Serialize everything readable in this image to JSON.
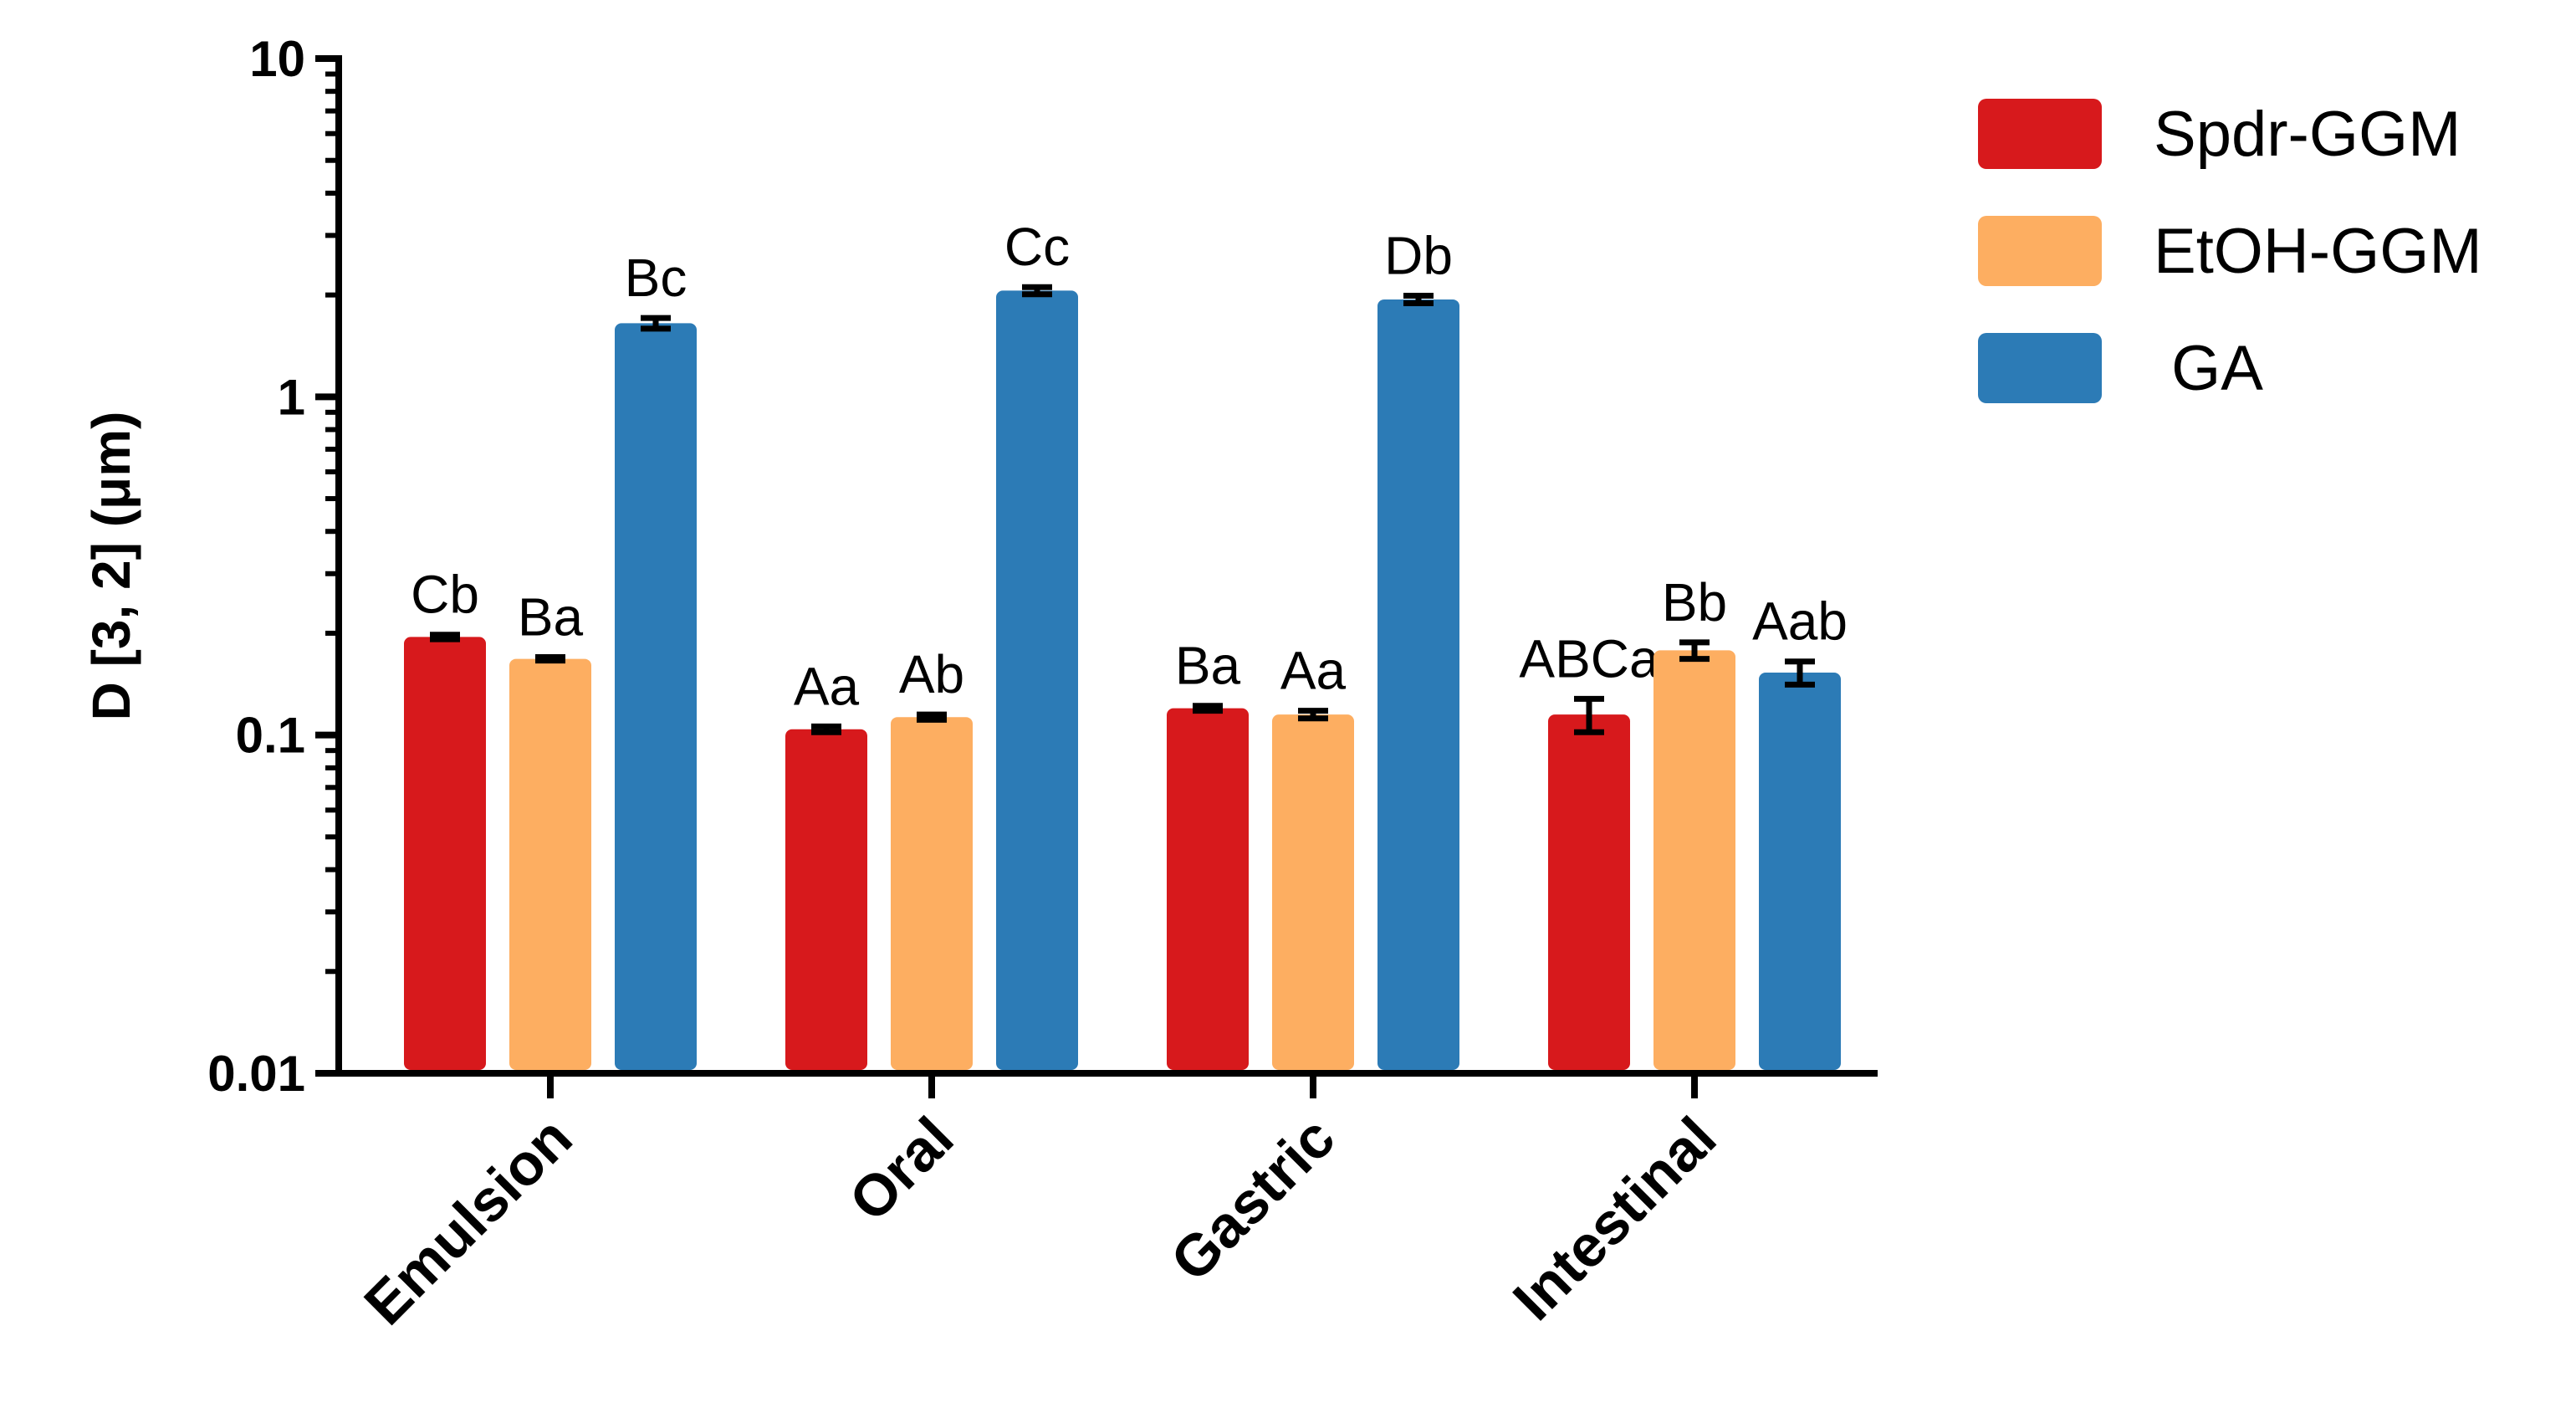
{
  "chart_data": {
    "type": "bar",
    "title": "",
    "xlabel": "",
    "ylabel": "D [3, 2] (μm)",
    "yscale": "log",
    "ylim": [
      0.01,
      10
    ],
    "yticks": [
      {
        "value": 0.01,
        "label": "0.01"
      },
      {
        "value": 0.1,
        "label": "0.1"
      },
      {
        "value": 1,
        "label": "1"
      },
      {
        "value": 10,
        "label": "10"
      }
    ],
    "categories": [
      "Emulsion",
      "Oral",
      "Gastric",
      "Intestinal"
    ],
    "series": [
      {
        "name": "Spdr-GGM",
        "color": "#d7191c",
        "values": [
          0.195,
          0.104,
          0.12,
          0.115
        ],
        "errors": [
          0.003,
          0.002,
          0.002,
          0.013
        ],
        "labels": [
          "Cb",
          "Aa",
          "Ba",
          "ABCa"
        ]
      },
      {
        "name": "EtOH-GGM",
        "color": "#fdae61",
        "values": [
          0.168,
          0.113,
          0.115,
          0.178
        ],
        "errors": [
          0.002,
          0.002,
          0.003,
          0.01
        ],
        "labels": [
          "Ba",
          "Ab",
          "Aa",
          "Bb"
        ]
      },
      {
        "name": " GA",
        "color": "#2c7bb6",
        "values": [
          1.65,
          2.06,
          1.94,
          0.153
        ],
        "errors": [
          0.06,
          0.05,
          0.05,
          0.012
        ],
        "labels": [
          "Bc",
          "Cc",
          "Db",
          "Aab"
        ]
      }
    ],
    "legend_position": "top-right"
  }
}
